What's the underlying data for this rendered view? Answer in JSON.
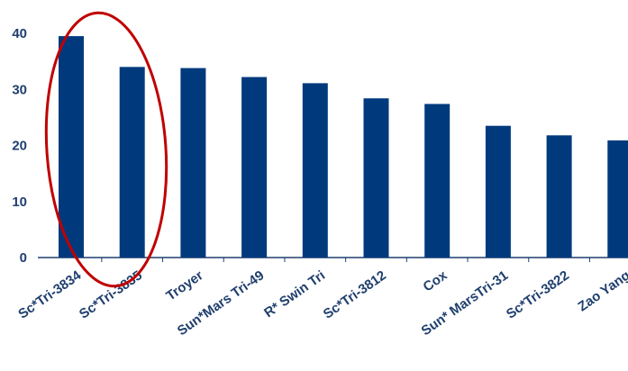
{
  "chart_data": {
    "type": "bar",
    "title": "",
    "xlabel": "",
    "ylabel": "",
    "ylim": [
      0,
      40
    ],
    "yticks": [
      0,
      10,
      20,
      30,
      40
    ],
    "grid": false,
    "categories": [
      "Sc*Tri-3834",
      "Sc*Tri-3835",
      "Troyer",
      "Sun*Mars Tri-49",
      "R* Swin Tri",
      "Sc*Tri-3812",
      "Cox",
      "Sun* MarsTri-31",
      "Sc*Tri-3822",
      "Zao Yang"
    ],
    "values": [
      39.5,
      34,
      33.8,
      32.2,
      31.1,
      28.4,
      27.4,
      23.5,
      21.8,
      20.9
    ],
    "colors": {
      "bar": "#003a7d",
      "axis": "#1f3f6e",
      "highlight": "#c00000"
    },
    "annotation": {
      "shape": "ellipse",
      "highlights": [
        "Sc*Tri-3834",
        "Sc*Tri-3835"
      ]
    }
  }
}
